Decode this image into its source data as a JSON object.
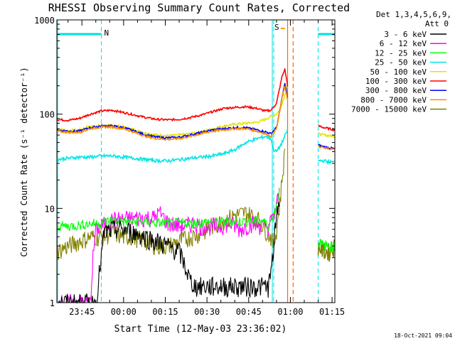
{
  "chart_data": {
    "type": "line",
    "title": "RHESSI Observing Summary Count Rates, Corrected",
    "xlabel": "Start Time (12-May-03 23:36:02)",
    "ylabel": "Corrected Count Rate (s⁻¹ detector⁻¹)",
    "yscale": "log",
    "ylim": [
      1,
      1000
    ],
    "xlim_minutes_from_start": [
      0,
      100
    ],
    "xtick_labels": [
      "23:45",
      "00:00",
      "00:15",
      "00:30",
      "00:45",
      "01:00",
      "01:15"
    ],
    "xtick_minutes": [
      9,
      24,
      39,
      54,
      69,
      84,
      99
    ],
    "ytick_labels": [
      "1",
      "10",
      "100",
      "1000"
    ],
    "ytick_values": [
      1,
      10,
      100,
      1000
    ],
    "detector_info": [
      "Det 1,3,4,5,6,9,",
      "Att 0"
    ],
    "timestamp": "18-Oct-2021 09:04",
    "night_bars": [
      {
        "label": "N",
        "x_start": 0,
        "x_end": 16,
        "color": "#00e0e0"
      },
      {
        "label": "",
        "x_start": 94,
        "x_end": 100,
        "color": "#00e0e0"
      }
    ],
    "saa_bar": {
      "label": "S",
      "x_start": 78,
      "x_end": 80,
      "color": "#ff9900"
    },
    "night_boundary_lines": [
      16,
      78,
      94
    ],
    "flare_lines": [
      83,
      85
    ],
    "series": [
      {
        "name": "3 - 6 keV",
        "color": "#000000",
        "x": [
          0,
          10,
          14,
          17,
          20,
          24,
          28,
          32,
          36,
          40,
          44,
          46,
          48,
          50,
          54,
          58,
          62,
          66,
          70,
          74,
          76,
          77,
          78,
          79,
          80
        ],
        "y": [
          1,
          1,
          1,
          5.5,
          6,
          6,
          5.5,
          5,
          4.5,
          4,
          3.5,
          2.5,
          1.7,
          1.5,
          1.5,
          1.5,
          1.5,
          1.5,
          1.5,
          1.5,
          1.5,
          2,
          4,
          8,
          12
        ]
      },
      {
        "name": "6 - 12 keV",
        "color": "#ff00ff",
        "x": [
          0,
          12,
          13,
          14,
          20,
          30,
          35,
          37,
          40,
          45,
          50,
          52,
          55,
          58,
          62,
          66,
          70,
          74,
          76,
          78,
          79,
          80
        ],
        "y": [
          1,
          1,
          3,
          6,
          7.5,
          8,
          8,
          9,
          7,
          6.5,
          7,
          6.5,
          6.5,
          6.5,
          7,
          6,
          7,
          6.5,
          6.5,
          8,
          11,
          14
        ]
      },
      {
        "name": "12 - 25 keV",
        "color": "#00ff00",
        "x": [
          0,
          5,
          10,
          15,
          20,
          25,
          30,
          35,
          40,
          45,
          50,
          55,
          60,
          65,
          70,
          74,
          76,
          78,
          79,
          80
        ],
        "y": [
          6.5,
          6.5,
          6.8,
          7,
          7.5,
          7.2,
          7.3,
          7,
          7,
          7,
          7,
          7.2,
          7.2,
          7.3,
          7.3,
          7.5,
          6.5,
          8.5,
          11,
          15
        ]
      },
      {
        "name": "25 - 50 keV",
        "color": "#00e5e5",
        "x": [
          0,
          4,
          8,
          12,
          16,
          20,
          24,
          28,
          32,
          36,
          40,
          44,
          48,
          52,
          56,
          60,
          64,
          68,
          72,
          75,
          77,
          78,
          79,
          80,
          81,
          82,
          83
        ],
        "y": [
          33,
          34,
          35,
          35,
          36,
          36,
          35,
          34,
          33,
          32,
          32,
          33,
          34,
          35,
          36,
          38,
          42,
          50,
          55,
          58,
          55,
          42,
          40,
          44,
          50,
          58,
          68
        ]
      },
      {
        "name": "50 - 100 keV",
        "color": "#e5e500",
        "x": [
          0,
          4,
          8,
          12,
          16,
          20,
          24,
          28,
          32,
          36,
          40,
          44,
          48,
          52,
          56,
          60,
          64,
          68,
          72,
          75,
          77,
          79,
          80,
          81,
          82,
          83
        ],
        "y": [
          70,
          67,
          68,
          74,
          76,
          76,
          73,
          68,
          63,
          60,
          59,
          60,
          62,
          65,
          70,
          75,
          78,
          80,
          82,
          88,
          95,
          100,
          110,
          130,
          160,
          210
        ]
      },
      {
        "name": "100 - 300 keV",
        "color": "#ff0000",
        "x": [
          0,
          4,
          8,
          12,
          16,
          20,
          24,
          28,
          32,
          36,
          40,
          44,
          48,
          52,
          56,
          60,
          64,
          68,
          72,
          75,
          77,
          79,
          80,
          81,
          82,
          83
        ],
        "y": [
          88,
          86,
          90,
          100,
          108,
          110,
          104,
          98,
          92,
          88,
          87,
          88,
          92,
          98,
          106,
          115,
          118,
          120,
          115,
          108,
          110,
          130,
          180,
          250,
          300,
          200
        ]
      },
      {
        "name": "300 - 800 keV",
        "color": "#0000ff",
        "x": [
          0,
          4,
          8,
          12,
          16,
          20,
          24,
          28,
          32,
          36,
          40,
          44,
          48,
          52,
          56,
          60,
          64,
          68,
          72,
          75,
          77,
          79,
          80,
          81,
          82,
          83
        ],
        "y": [
          68,
          66,
          66,
          72,
          75,
          75,
          72,
          66,
          60,
          57,
          56,
          57,
          60,
          64,
          68,
          70,
          72,
          72,
          68,
          65,
          62,
          72,
          100,
          150,
          210,
          150
        ]
      },
      {
        "name": "800 - 7000 keV",
        "color": "#ff8c00",
        "x": [
          0,
          4,
          8,
          12,
          16,
          20,
          24,
          28,
          32,
          36,
          40,
          44,
          48,
          52,
          56,
          60,
          64,
          68,
          72,
          75,
          77,
          79,
          80,
          81,
          82,
          83
        ],
        "y": [
          66,
          64,
          64,
          70,
          73,
          73,
          70,
          64,
          58,
          55,
          54,
          55,
          58,
          62,
          66,
          68,
          70,
          70,
          66,
          62,
          58,
          70,
          100,
          150,
          200,
          140
        ]
      },
      {
        "name": "7000 - 15000 keV",
        "color": "#808000",
        "x": [
          0,
          4,
          8,
          12,
          16,
          20,
          24,
          28,
          32,
          36,
          40,
          44,
          48,
          52,
          56,
          60,
          64,
          68,
          72,
          75,
          77,
          78,
          79,
          80,
          81,
          82
        ],
        "y": [
          3.5,
          4,
          4.5,
          5,
          5,
          5.5,
          5,
          5,
          4.5,
          4,
          4,
          4.5,
          5,
          5.5,
          6.5,
          7.5,
          8.5,
          9,
          8,
          6,
          5,
          4,
          6,
          10,
          20,
          40
        ]
      }
    ],
    "post_gap_segment": {
      "x": [
        94,
        96,
        98,
        100
      ],
      "values": {
        "25 - 50 keV": [
          32,
          32,
          31,
          31
        ],
        "50 - 100 keV": [
          62,
          60,
          59,
          58
        ],
        "100 - 300 keV": [
          75,
          72,
          70,
          68
        ],
        "300 - 800 keV": [
          47,
          45,
          44,
          43
        ],
        "800 - 7000 keV": [
          45,
          44,
          43,
          42
        ],
        "7000 - 15000 keV": [
          4,
          3.5,
          3.5,
          4
        ],
        "12 - 25 keV": [
          4.5,
          4,
          4,
          4
        ]
      }
    }
  }
}
